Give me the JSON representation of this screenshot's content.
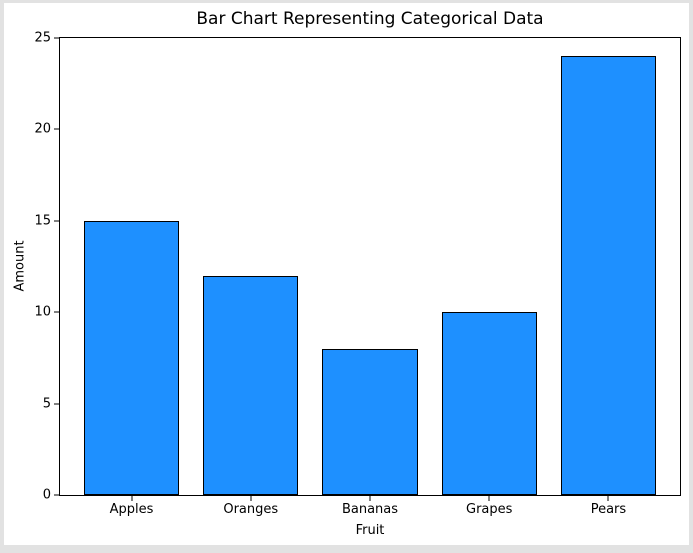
{
  "chart_data": {
    "type": "bar",
    "title": "Bar Chart Representing Categorical Data",
    "xlabel": "Fruit",
    "ylabel": "Amount",
    "categories": [
      "Apples",
      "Oranges",
      "Bananas",
      "Grapes",
      "Pears"
    ],
    "values": [
      15,
      12,
      8,
      10,
      24
    ],
    "ylim": [
      0,
      25
    ],
    "yticks": [
      0,
      5,
      10,
      15,
      20,
      25
    ],
    "xlim_units": [
      -0.6,
      4.6
    ],
    "bar_width_units": 0.8,
    "grid": false,
    "legend": "none",
    "colors": {
      "bar_fill": "#1E90FF",
      "bar_edge": "#000000",
      "plot_background": "#ffffff",
      "figure_background": "#ffffff",
      "outer_background": "#e2e2e2",
      "text": "#000000"
    }
  }
}
